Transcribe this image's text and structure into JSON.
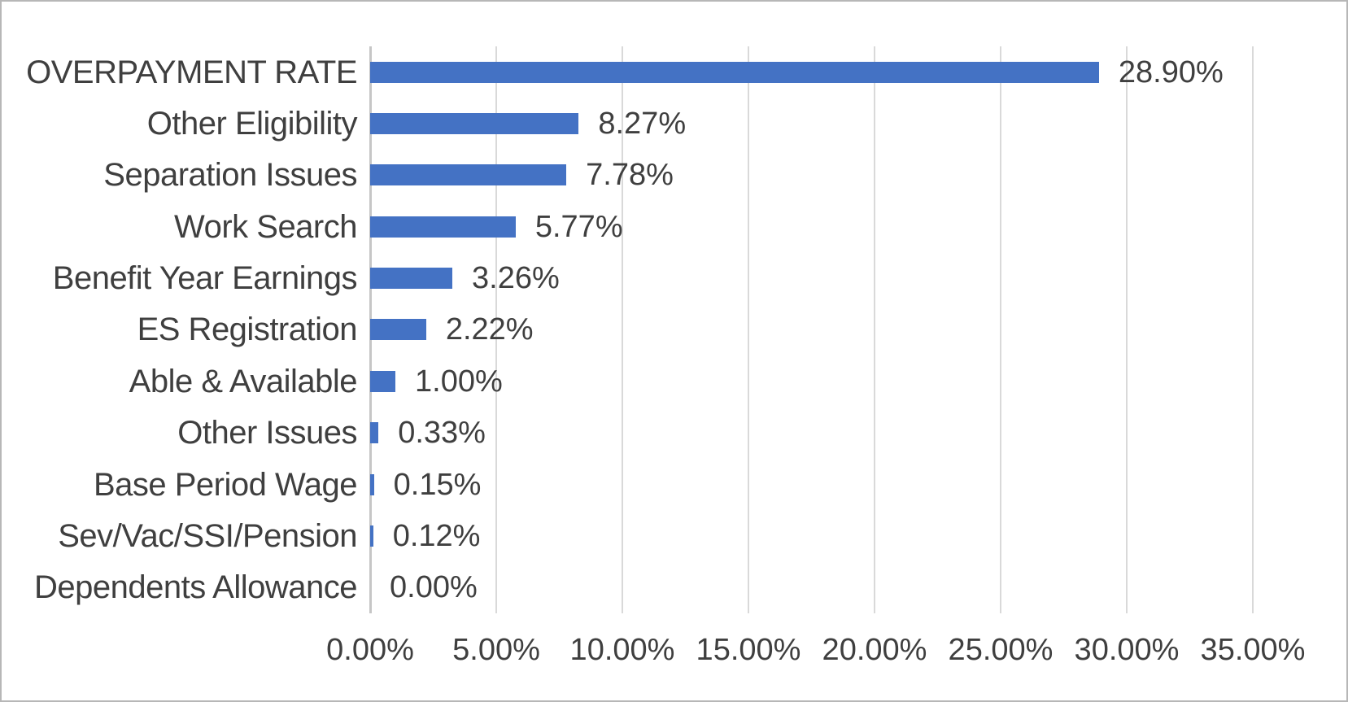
{
  "window": {
    "background": "#FFFFFF",
    "border_color": "#B7B7B7"
  },
  "chart_data": {
    "type": "bar",
    "orientation": "horizontal",
    "title": "",
    "xlabel": "",
    "ylabel": "",
    "categories": [
      "OVERPAYMENT RATE",
      "Other Eligibility",
      "Separation Issues",
      "Work Search",
      "Benefit Year Earnings",
      "ES Registration",
      "Able & Available",
      "Other Issues",
      "Base Period Wage",
      "Sev/Vac/SSI/Pension",
      "Dependents Allowance"
    ],
    "values": [
      28.9,
      8.27,
      7.78,
      5.77,
      3.26,
      2.22,
      1.0,
      0.33,
      0.15,
      0.12,
      0.0
    ],
    "data_labels": [
      "28.90%",
      "8.27%",
      "7.78%",
      "5.77%",
      "3.26%",
      "2.22%",
      "1.00%",
      "0.33%",
      "0.15%",
      "0.12%",
      "0.00%"
    ],
    "x_tick_values": [
      0,
      5,
      10,
      15,
      20,
      25,
      30,
      35
    ],
    "x_tick_labels": [
      "0.00%",
      "5.00%",
      "10.00%",
      "15.00%",
      "20.00%",
      "25.00%",
      "30.00%",
      "35.00%"
    ],
    "xlim": [
      0,
      35
    ],
    "grid": true,
    "legend": false,
    "bar_color": "#4472C4",
    "gridline_color": "#D9D9D9",
    "axis_line_color": "#C6C6C6",
    "text_color": "#3F3F3F"
  }
}
